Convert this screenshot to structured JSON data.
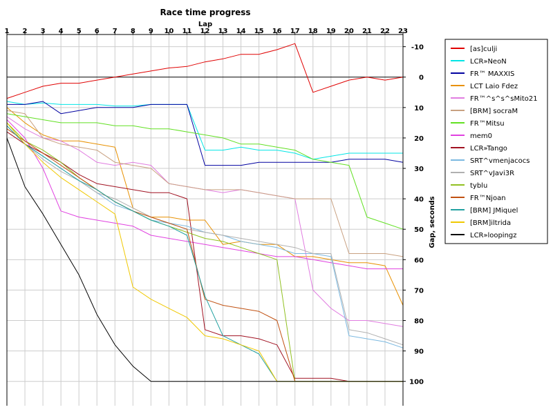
{
  "chart_data": {
    "type": "line",
    "title": "Race time progress",
    "xlabel": "Lap",
    "ylabel": "Gap, seconds",
    "x": [
      1,
      2,
      3,
      4,
      5,
      6,
      7,
      8,
      9,
      10,
      11,
      12,
      13,
      14,
      15,
      16,
      17,
      18,
      19,
      20,
      21,
      22,
      23
    ],
    "xlim": [
      1,
      23
    ],
    "ylim": [
      -14,
      108
    ],
    "y_inverted": true,
    "y_axis_side": "right",
    "y_ticks": [
      -10,
      0,
      10,
      20,
      30,
      40,
      50,
      60,
      70,
      80,
      90,
      100
    ],
    "y_tick_labels": [
      "-10",
      "0",
      "10",
      "20",
      "30",
      "40",
      "50",
      "60",
      "70",
      "80",
      "90",
      "100"
    ],
    "grid": true,
    "legend_position": "right",
    "series": [
      {
        "name": "[as]culji",
        "color": "#e00000",
        "values": [
          7,
          5,
          3,
          2,
          2,
          1,
          0,
          -1,
          -2,
          -3,
          -3.5,
          -5,
          -6,
          -7.5,
          -7.5,
          -9,
          -11,
          5,
          3,
          1,
          0,
          1,
          0
        ]
      },
      {
        "name": "LCR»NeoN",
        "color": "#00e5e5",
        "values": [
          8,
          9,
          8.5,
          9,
          9,
          9,
          9.5,
          9.5,
          9,
          9,
          9,
          24,
          24,
          23,
          24,
          24,
          25,
          27,
          26,
          25,
          25,
          25,
          25
        ]
      },
      {
        "name": "FR™ MAXXIS",
        "color": "#0000a0",
        "values": [
          9,
          9,
          8,
          12,
          11,
          10,
          10,
          10,
          9,
          9,
          9,
          29,
          29,
          29,
          28,
          28,
          28,
          28,
          28,
          27,
          27,
          27,
          28
        ]
      },
      {
        "name": "LCT Laio Fdez",
        "color": "#e89000",
        "values": [
          10,
          15,
          19,
          21,
          21,
          22,
          23,
          43,
          46,
          46,
          47,
          47,
          55,
          54,
          55,
          55,
          59,
          59,
          60,
          61,
          61,
          62,
          75
        ]
      },
      {
        "name": "FR™^s^s^sMito21",
        "color": "#e07ce0",
        "values": [
          13,
          17,
          20,
          21,
          24,
          28,
          29,
          28,
          29,
          35,
          36,
          37,
          38,
          37,
          38,
          39,
          40,
          70,
          76,
          80,
          80,
          81,
          82
        ]
      },
      {
        "name": "[BRM] socraM",
        "color": "#c8a080",
        "values": [
          11,
          12,
          20,
          22,
          23,
          24,
          28,
          29,
          30,
          35,
          36,
          37,
          37,
          37,
          38,
          39,
          40,
          40,
          40,
          58,
          58,
          58,
          59
        ]
      },
      {
        "name": "FR™Mitsu",
        "color": "#60e020",
        "values": [
          12,
          13,
          14,
          15,
          15,
          15,
          16,
          16,
          17,
          17,
          18,
          19,
          20,
          22,
          22,
          23,
          24,
          27,
          28,
          29,
          46,
          48,
          50
        ]
      },
      {
        "name": "mem0",
        "color": "#e040e0",
        "values": [
          14,
          20,
          30,
          44,
          46,
          47,
          48,
          49,
          52,
          53,
          54,
          55,
          56,
          57,
          58,
          59,
          59,
          60,
          61,
          62,
          63,
          63,
          63
        ]
      },
      {
        "name": "LCR»Tango",
        "color": "#a01020",
        "values": [
          18,
          22,
          25,
          28,
          32,
          35,
          36,
          37,
          38,
          38,
          40,
          83,
          85,
          85,
          86,
          88,
          99,
          99,
          99,
          100,
          100,
          100,
          100
        ]
      },
      {
        "name": "SRT^vmenjacocs",
        "color": "#7ab8e0",
        "values": [
          15,
          22,
          26,
          30,
          34,
          38,
          42,
          44,
          47,
          48,
          49,
          51,
          52,
          54,
          55,
          56,
          58,
          58,
          59,
          85,
          86,
          87,
          89
        ]
      },
      {
        "name": "SRT^vJavi3R",
        "color": "#b0b0b0",
        "values": [
          16,
          22,
          27,
          31,
          34,
          38,
          40,
          43,
          46,
          48,
          50,
          51,
          52,
          53,
          54,
          55,
          56,
          58,
          58,
          83,
          84,
          86,
          88
        ]
      },
      {
        "name": "tyblu",
        "color": "#90c020",
        "values": [
          15,
          21,
          24,
          28,
          33,
          37,
          41,
          44,
          47,
          49,
          51,
          53,
          54,
          56,
          58,
          60,
          100,
          100,
          100,
          100,
          100,
          100,
          100
        ]
      },
      {
        "name": "FR™Njoan",
        "color": "#c05010",
        "values": [
          17,
          21,
          25,
          29,
          33,
          37,
          41,
          44,
          46,
          48,
          50,
          73,
          75,
          76,
          77,
          80,
          100,
          100,
          100,
          100,
          100,
          100,
          100
        ]
      },
      {
        "name": "[BRM] JMiquel",
        "color": "#20a0a0",
        "values": [
          16,
          22,
          26,
          30,
          34,
          37,
          41,
          44,
          47,
          49,
          52,
          72,
          85,
          88,
          91,
          100,
          100,
          100,
          100,
          100,
          100,
          100,
          100
        ]
      },
      {
        "name": "[BRM]iltrida",
        "color": "#f0c800",
        "values": [
          15,
          22,
          28,
          33,
          37,
          41,
          45,
          69,
          73,
          76,
          79,
          85,
          86,
          88,
          90,
          100,
          100,
          100,
          100,
          100,
          100,
          100,
          100
        ]
      },
      {
        "name": "LCR»loopingz",
        "color": "#000000",
        "values": [
          20,
          36,
          45,
          55,
          65,
          78,
          88,
          95,
          100,
          100,
          100,
          100,
          100,
          100,
          100,
          100,
          100,
          100,
          100,
          100,
          100,
          100,
          100
        ]
      }
    ]
  }
}
